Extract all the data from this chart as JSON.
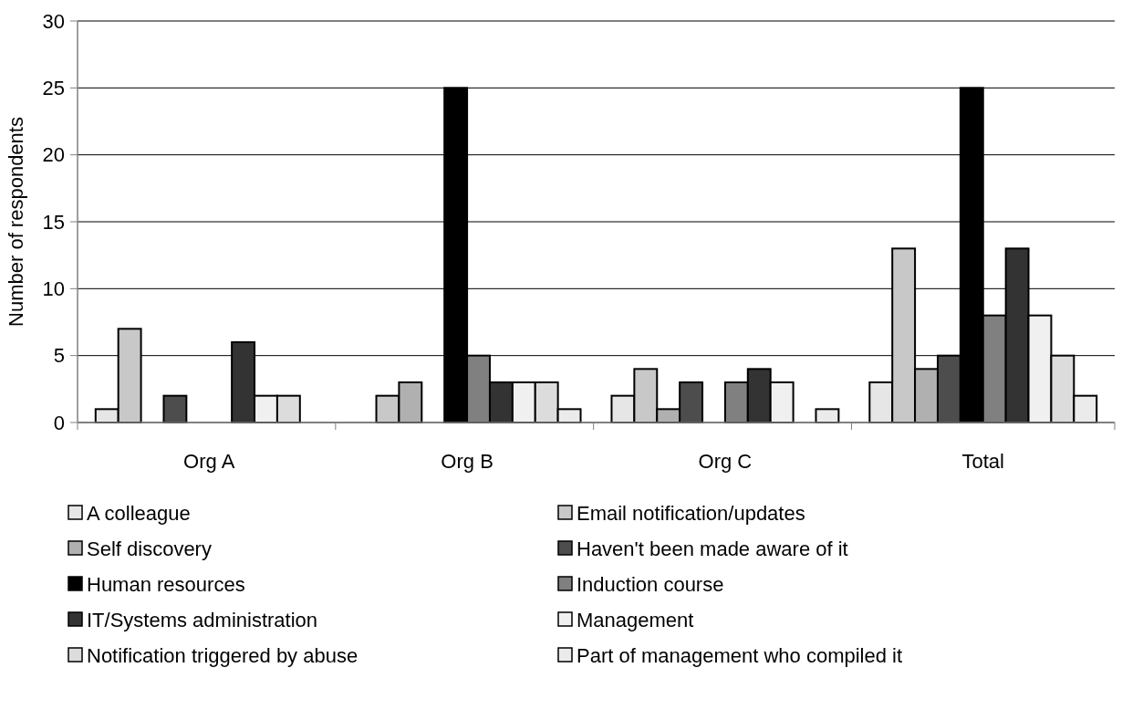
{
  "chart_data": {
    "type": "bar",
    "ylabel": "Number of respondents",
    "categories": [
      "Org A",
      "Org B",
      "Org C",
      "Total"
    ],
    "series": [
      {
        "name": "A colleague",
        "color": "#e6e6e6",
        "values": [
          1,
          0,
          2,
          3
        ]
      },
      {
        "name": "Email notification/updates",
        "color": "#c8c8c8",
        "values": [
          7,
          2,
          4,
          13
        ]
      },
      {
        "name": "Self discovery",
        "color": "#b0b0b0",
        "values": [
          0,
          3,
          1,
          4
        ]
      },
      {
        "name": "Haven't been made aware of it",
        "color": "#4d4d4d",
        "values": [
          2,
          0,
          3,
          5
        ]
      },
      {
        "name": "Human resources",
        "color": "#000000",
        "values": [
          0,
          25,
          0,
          25
        ]
      },
      {
        "name": "Induction course",
        "color": "#808080",
        "values": [
          0,
          5,
          3,
          8
        ]
      },
      {
        "name": "IT/Systems administration",
        "color": "#333333",
        "values": [
          6,
          3,
          4,
          13
        ]
      },
      {
        "name": "Management",
        "color": "#f0f0f0",
        "values": [
          2,
          3,
          3,
          8
        ]
      },
      {
        "name": "Notification triggered by abuse",
        "color": "#dcdcdc",
        "values": [
          2,
          3,
          0,
          5
        ]
      },
      {
        "name": "Part of management who compiled it",
        "color": "#ebebeb",
        "values": [
          0,
          1,
          1,
          2
        ]
      }
    ],
    "ylim": [
      0,
      30
    ],
    "yticks": [
      0,
      5,
      10,
      15,
      20,
      25,
      30
    ],
    "grid": "y",
    "legend": "bottom"
  }
}
